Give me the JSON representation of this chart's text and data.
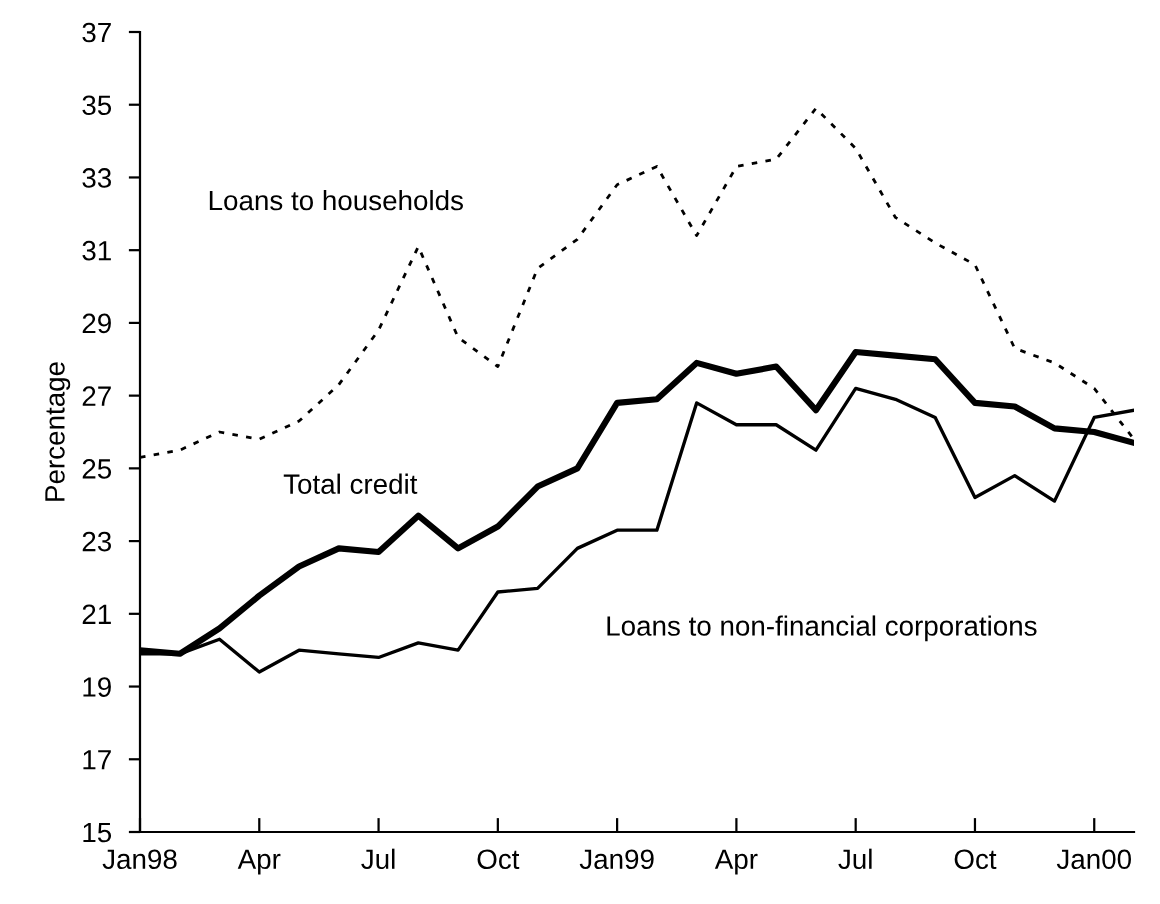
{
  "chart_data": {
    "type": "line",
    "ylabel": "Percentage",
    "categories": [
      "Jan98",
      null,
      null,
      "Apr",
      null,
      null,
      "Jul",
      null,
      null,
      "Oct",
      null,
      null,
      "Jan99",
      null,
      null,
      "Apr",
      null,
      null,
      "Jul",
      null,
      null,
      "Oct",
      null,
      null,
      "Jan00",
      null
    ],
    "series": [
      {
        "name": "Loans to households",
        "color": "#000000",
        "line_style": "dotted",
        "values": [
          25.3,
          25.5,
          26.0,
          25.8,
          26.3,
          27.3,
          28.8,
          31.1,
          28.6,
          27.8,
          30.5,
          31.3,
          32.8,
          33.3,
          31.4,
          33.3,
          33.5,
          34.9,
          33.8,
          31.9,
          31.2,
          30.6,
          28.3,
          27.9,
          27.2,
          25.8
        ]
      },
      {
        "name": "Total credit",
        "color": "#000000",
        "line_style": "solid",
        "values": [
          20.0,
          19.9,
          20.6,
          21.5,
          22.3,
          22.8,
          22.7,
          23.7,
          22.8,
          23.4,
          24.5,
          25.0,
          26.8,
          26.9,
          27.9,
          27.6,
          27.8,
          26.6,
          28.2,
          28.1,
          28.0,
          26.8,
          26.7,
          26.1,
          26.0,
          25.7
        ]
      },
      {
        "name": "Loans to non-financial corporations",
        "color": "#000000",
        "line_style": "solid",
        "values": [
          19.9,
          19.9,
          20.3,
          19.4,
          20.0,
          19.9,
          19.8,
          20.2,
          20.0,
          21.6,
          21.7,
          22.8,
          23.3,
          23.3,
          26.8,
          26.2,
          26.2,
          25.5,
          27.2,
          26.9,
          26.4,
          24.2,
          24.8,
          24.1,
          26.4,
          26.6
        ]
      }
    ],
    "ylim": [
      15,
      37
    ],
    "yticks": [
      15,
      17,
      19,
      21,
      23,
      25,
      27,
      29,
      31,
      33,
      35,
      37
    ],
    "grid": false,
    "legend": false
  }
}
